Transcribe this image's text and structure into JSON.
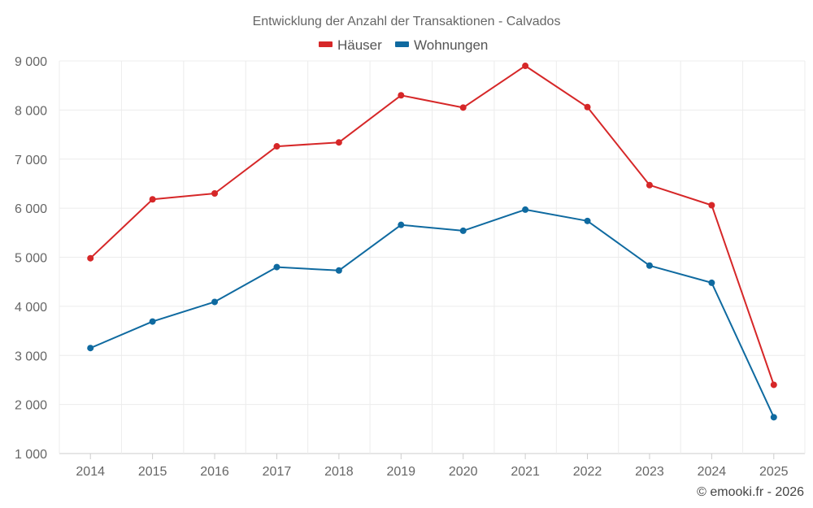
{
  "chart_data": {
    "type": "line",
    "title": "Entwicklung der Anzahl der Transaktionen - Calvados",
    "xlabel": "",
    "ylabel": "",
    "categories": [
      "2014",
      "2015",
      "2016",
      "2017",
      "2018",
      "2019",
      "2020",
      "2021",
      "2022",
      "2023",
      "2024",
      "2025"
    ],
    "ylim": [
      1000,
      9000
    ],
    "yticks": [
      1000,
      2000,
      3000,
      4000,
      5000,
      6000,
      7000,
      8000,
      9000
    ],
    "ytick_labels": [
      "1 000",
      "2 000",
      "3 000",
      "4 000",
      "5 000",
      "6 000",
      "7 000",
      "8 000",
      "9 000"
    ],
    "grid": true,
    "legend_position": "top-center",
    "series": [
      {
        "name": "Häuser",
        "color": "#d62728",
        "values": [
          4980,
          6180,
          6300,
          7260,
          7340,
          8300,
          8050,
          8900,
          8060,
          6470,
          6060,
          2400
        ]
      },
      {
        "name": "Wohnungen",
        "color": "#0f6aa0",
        "values": [
          3150,
          3690,
          4090,
          4800,
          4730,
          5660,
          5540,
          5970,
          5740,
          4830,
          4480,
          1740
        ]
      }
    ],
    "credit": "© emooki.fr - 2026"
  }
}
